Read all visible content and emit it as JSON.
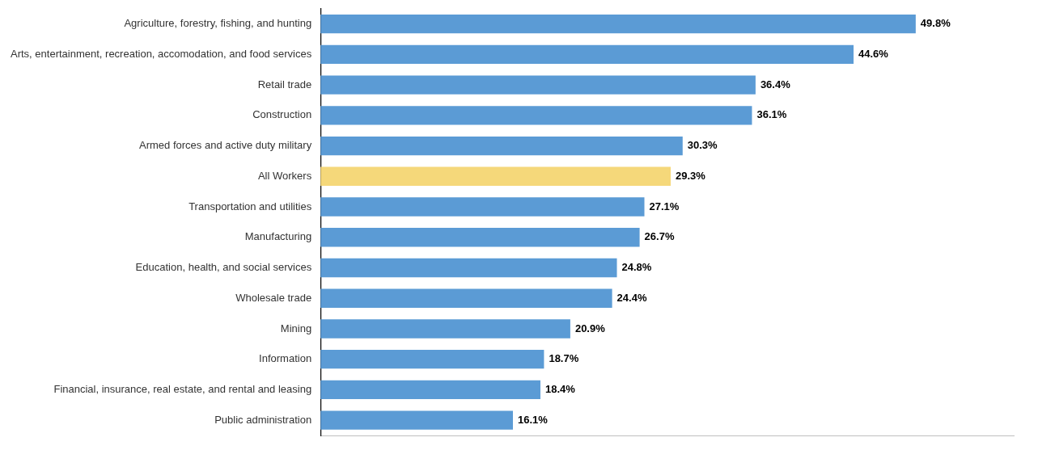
{
  "chart_data": {
    "type": "bar",
    "orientation": "horizontal",
    "categories": [
      "Agriculture, forestry, fishing, and hunting",
      "Arts, entertainment, recreation, accomodation, and food services",
      "Retail trade",
      "Construction",
      "Armed forces and active duty military",
      "All Workers",
      "Transportation and utilities",
      "Manufacturing",
      "Education, health, and social services",
      "Wholesale trade",
      "Mining",
      "Information",
      "Financial, insurance, real estate, and rental and leasing",
      "Public administration"
    ],
    "values": [
      49.8,
      44.6,
      36.4,
      36.1,
      30.3,
      29.3,
      27.1,
      26.7,
      24.8,
      24.4,
      20.9,
      18.7,
      18.4,
      16.1
    ],
    "value_labels": [
      "49.8%",
      "44.6%",
      "36.4%",
      "36.1%",
      "30.3%",
      "29.3%",
      "27.1%",
      "26.7%",
      "24.8%",
      "24.4%",
      "20.9%",
      "18.7%",
      "18.4%",
      "16.1%"
    ],
    "colors": [
      "#5B9BD5",
      "#5B9BD5",
      "#5B9BD5",
      "#5B9BD5",
      "#5B9BD5",
      "#F5D87A",
      "#5B9BD5",
      "#5B9BD5",
      "#5B9BD5",
      "#5B9BD5",
      "#5B9BD5",
      "#5B9BD5",
      "#5B9BD5",
      "#5B9BD5"
    ],
    "xlim": [
      0,
      58
    ],
    "grid": false,
    "data_labels": true,
    "tick_labels": "y"
  }
}
